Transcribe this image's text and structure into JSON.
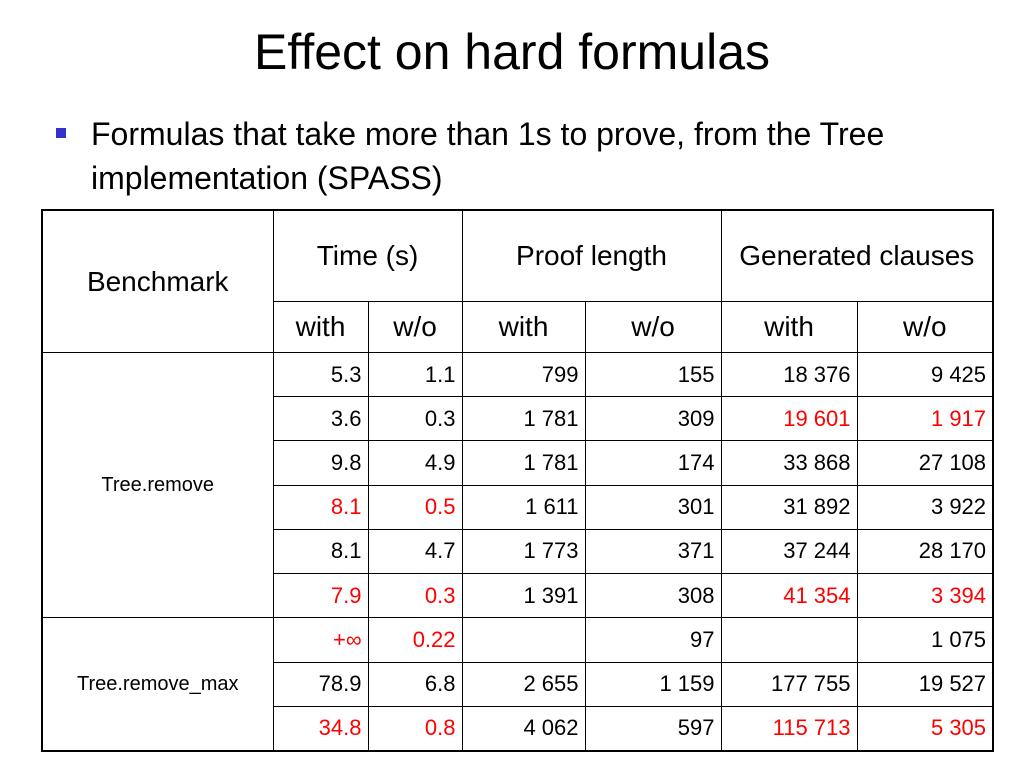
{
  "slide": {
    "title": "Effect on hard formulas",
    "bullet": "Formulas that take more than 1s to prove, from the Tree implementation (SPASS)"
  },
  "colors": {
    "highlight": "#ff0000",
    "bullet": "#3333cc"
  },
  "table": {
    "headers": {
      "benchmark": "Benchmark",
      "time": "Time (s)",
      "proof": "Proof length",
      "generated": "Generated clauses",
      "with": "with",
      "wo": "w/o"
    },
    "groups": [
      {
        "benchmark": "Tree.remove",
        "rows": [
          {
            "cells": [
              "5.3",
              "1.1",
              "799",
              "155",
              "18 376",
              "9 425"
            ],
            "red": [
              false,
              false,
              false,
              false,
              false,
              false
            ]
          },
          {
            "cells": [
              "3.6",
              "0.3",
              "1 781",
              "309",
              "19 601",
              "1 917"
            ],
            "red": [
              false,
              false,
              false,
              false,
              true,
              true
            ]
          },
          {
            "cells": [
              "9.8",
              "4.9",
              "1 781",
              "174",
              "33 868",
              "27 108"
            ],
            "red": [
              false,
              false,
              false,
              false,
              false,
              false
            ]
          },
          {
            "cells": [
              "8.1",
              "0.5",
              "1 611",
              "301",
              "31 892",
              "3 922"
            ],
            "red": [
              true,
              true,
              false,
              false,
              false,
              false
            ]
          },
          {
            "cells": [
              "8.1",
              "4.7",
              "1 773",
              "371",
              "37 244",
              "28 170"
            ],
            "red": [
              false,
              false,
              false,
              false,
              false,
              false
            ]
          },
          {
            "cells": [
              "7.9",
              "0.3",
              "1 391",
              "308",
              "41 354",
              "3 394"
            ],
            "red": [
              true,
              true,
              false,
              false,
              true,
              true
            ]
          }
        ]
      },
      {
        "benchmark": "Tree.remove_max",
        "rows": [
          {
            "cells": [
              "+∞",
              "0.22",
              "",
              "97",
              "",
              "1 075"
            ],
            "red": [
              true,
              true,
              false,
              false,
              false,
              false
            ]
          },
          {
            "cells": [
              "78.9",
              "6.8",
              "2 655",
              "1 159",
              "177 755",
              "19 527"
            ],
            "red": [
              false,
              false,
              false,
              false,
              false,
              false
            ]
          },
          {
            "cells": [
              "34.8",
              "0.8",
              "4 062",
              "597",
              "115 713",
              "5 305"
            ],
            "red": [
              true,
              true,
              false,
              false,
              true,
              true
            ]
          }
        ]
      }
    ]
  }
}
